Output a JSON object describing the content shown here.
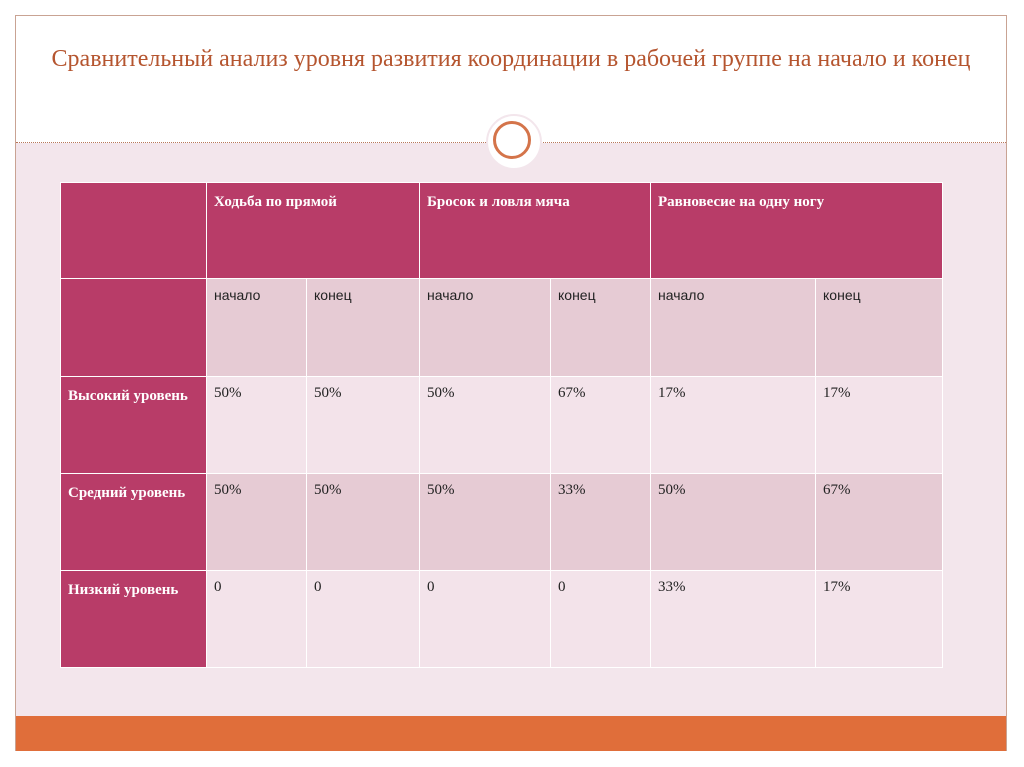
{
  "title": "Сравнительный анализ уровня развития координации в рабочей группе на начало и конец",
  "table": {
    "groups": [
      "Ходьба по прямой",
      "Бросок и ловля мяча",
      "Равновесие на одну ногу"
    ],
    "subheaders": [
      "начало",
      "конец",
      "начало",
      "конец",
      "начало",
      "конец"
    ],
    "rows": [
      {
        "label": "Высокий уровень",
        "cells": [
          "50%",
          "50%",
          "50%",
          "67%",
          "17%",
          "17%"
        ]
      },
      {
        "label": "Средний уровень",
        "cells": [
          "50%",
          "50%",
          "50%",
          "33%",
          "50%",
          "67%"
        ]
      },
      {
        "label": "Низкий уровень",
        "cells": [
          "0",
          "0",
          "0",
          "0",
          "33%",
          "17%"
        ]
      }
    ]
  }
}
